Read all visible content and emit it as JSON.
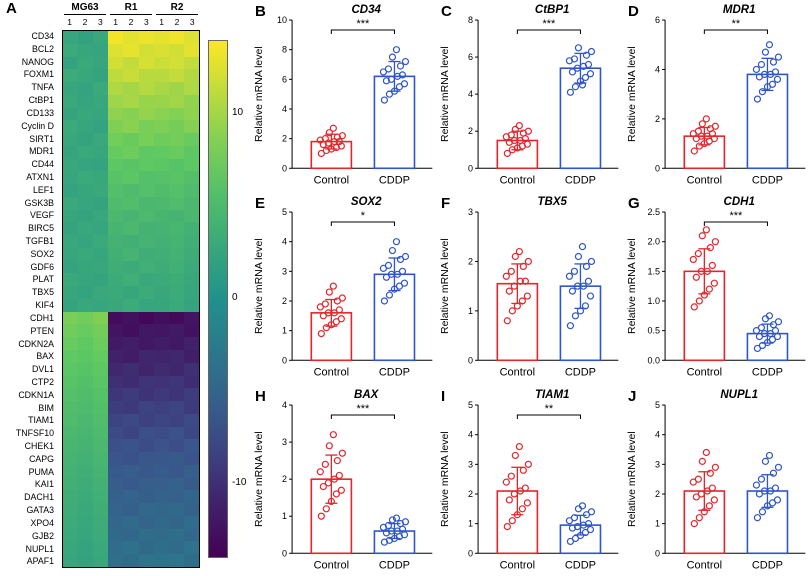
{
  "chart_data": [
    {
      "type": "heatmap",
      "panel": "A",
      "col_groups": [
        "MG63",
        "R1",
        "R2"
      ],
      "col_replicates": [
        "1",
        "2",
        "3"
      ],
      "rows": [
        "CD34",
        "BCL2",
        "NANOG",
        "FOXM1",
        "TNFA",
        "CtBP1",
        "CD133",
        "Cyclin D",
        "SIRT1",
        "MDR1",
        "CD44",
        "ATXN1",
        "LEF1",
        "GSK3B",
        "VEGF",
        "BIRC5",
        "TGFB1",
        "SOX2",
        "GDF6",
        "PLAT",
        "TBX5",
        "KIF4",
        "CDH1",
        "PTEN",
        "CDKN2A",
        "BAX",
        "DVL1",
        "CTP2",
        "CDKN1A",
        "BIM",
        "TIAM1",
        "TNFSF10",
        "CHEK1",
        "CAPG",
        "PUMA",
        "KAI1",
        "DACH1",
        "GATA3",
        "XPO4",
        "GJB2",
        "NUPL1",
        "APAF1"
      ],
      "values": [
        [
          2.5,
          2.0,
          2.8,
          13.5,
          12.8,
          13.2,
          12.9,
          13.4,
          12.6
        ],
        [
          3.0,
          2.6,
          2.4,
          12.6,
          13.0,
          12.2,
          12.4,
          12.0,
          12.8
        ],
        [
          2.2,
          2.9,
          2.5,
          12.0,
          11.5,
          12.3,
          11.8,
          12.1,
          11.4
        ],
        [
          3.1,
          2.7,
          2.3,
          11.2,
          11.7,
          10.9,
          11.0,
          11.5,
          10.7
        ],
        [
          2.6,
          2.2,
          3.0,
          10.6,
          10.1,
          10.8,
          10.3,
          9.9,
          10.5
        ],
        [
          2.9,
          2.4,
          2.7,
          9.8,
          10.2,
          9.5,
          9.6,
          10.0,
          9.3
        ],
        [
          2.3,
          2.8,
          2.5,
          9.2,
          8.8,
          9.4,
          9.0,
          8.6,
          9.1
        ],
        [
          3.0,
          2.5,
          2.2,
          8.5,
          8.9,
          8.2,
          8.4,
          8.0,
          8.7
        ],
        [
          2.7,
          2.3,
          2.9,
          7.9,
          7.5,
          8.1,
          7.7,
          8.0,
          7.4
        ],
        [
          2.4,
          2.9,
          2.6,
          7.3,
          7.7,
          7.0,
          7.1,
          7.5,
          6.8
        ],
        [
          2.8,
          2.4,
          2.2,
          6.8,
          6.4,
          7.0,
          6.6,
          6.2,
          6.9
        ],
        [
          2.5,
          3.0,
          2.7,
          6.2,
          6.6,
          5.9,
          6.0,
          6.4,
          5.8
        ],
        [
          2.2,
          2.6,
          2.9,
          5.7,
          5.3,
          5.9,
          5.5,
          5.9,
          5.2
        ],
        [
          2.9,
          2.5,
          2.3,
          5.2,
          5.6,
          4.9,
          5.0,
          5.4,
          4.8
        ],
        [
          2.6,
          2.2,
          2.8,
          4.8,
          4.4,
          5.0,
          4.6,
          4.2,
          4.9
        ],
        [
          2.3,
          2.8,
          2.5,
          4.4,
          4.8,
          4.1,
          4.2,
          4.6,
          4.0
        ],
        [
          2.8,
          2.4,
          3.0,
          4.1,
          3.7,
          4.3,
          3.9,
          4.3,
          3.6
        ],
        [
          2.5,
          2.9,
          2.6,
          3.8,
          4.2,
          3.5,
          3.6,
          4.0,
          3.4
        ],
        [
          2.2,
          2.6,
          2.8,
          3.5,
          3.1,
          3.7,
          3.3,
          3.7,
          3.0
        ],
        [
          2.9,
          2.5,
          2.3,
          3.2,
          3.6,
          2.9,
          3.0,
          3.4,
          2.8
        ],
        [
          2.6,
          2.2,
          2.9,
          3.0,
          2.6,
          3.2,
          2.8,
          3.2,
          2.5
        ],
        [
          2.3,
          2.8,
          2.5,
          2.8,
          3.2,
          2.5,
          2.6,
          3.0,
          2.4
        ],
        [
          8.2,
          7.8,
          8.5,
          -13.0,
          -12.5,
          -13.4,
          -12.8,
          -13.2,
          -12.4
        ],
        [
          7.8,
          7.4,
          8.0,
          -12.4,
          -12.8,
          -12.0,
          -12.2,
          -11.8,
          -12.6
        ],
        [
          7.4,
          7.0,
          7.6,
          -11.8,
          -11.4,
          -12.1,
          -11.6,
          -12.0,
          -11.2
        ],
        [
          7.0,
          6.6,
          7.2,
          -11.2,
          -11.6,
          -10.8,
          -11.0,
          -10.6,
          -11.4
        ],
        [
          6.6,
          6.2,
          6.9,
          -10.6,
          -10.2,
          -10.9,
          -10.4,
          -10.8,
          -10.0
        ],
        [
          6.2,
          5.8,
          6.5,
          -10.0,
          -10.4,
          -9.6,
          -9.8,
          -9.4,
          -10.2
        ],
        [
          5.9,
          5.5,
          6.1,
          -9.4,
          -9.0,
          -9.7,
          -9.2,
          -9.6,
          -8.8
        ],
        [
          5.5,
          5.1,
          5.8,
          -8.8,
          -9.2,
          -8.4,
          -8.6,
          -8.2,
          -9.0
        ],
        [
          5.2,
          4.8,
          5.4,
          -8.2,
          -7.8,
          -8.5,
          -8.0,
          -8.4,
          -7.6
        ],
        [
          4.9,
          4.5,
          5.1,
          -7.7,
          -8.1,
          -7.3,
          -7.5,
          -7.1,
          -7.9
        ],
        [
          4.6,
          4.2,
          4.8,
          -7.2,
          -6.8,
          -7.5,
          -7.0,
          -7.4,
          -6.6
        ],
        [
          4.3,
          3.9,
          4.5,
          -6.7,
          -7.1,
          -6.3,
          -6.5,
          -6.1,
          -6.9
        ],
        [
          4.0,
          3.6,
          4.2,
          -6.2,
          -5.8,
          -6.5,
          -6.0,
          -6.4,
          -5.6
        ],
        [
          3.8,
          3.4,
          4.0,
          -5.8,
          -6.2,
          -5.4,
          -5.6,
          -5.2,
          -6.0
        ],
        [
          3.5,
          3.1,
          3.7,
          -5.4,
          -5.0,
          -5.7,
          -5.2,
          -5.6,
          -4.8
        ],
        [
          3.3,
          2.9,
          3.5,
          -5.0,
          -5.4,
          -4.6,
          -4.8,
          -4.4,
          -5.2
        ],
        [
          3.1,
          2.7,
          3.3,
          -4.7,
          -4.3,
          -5.0,
          -4.5,
          -4.9,
          -4.1
        ],
        [
          2.9,
          2.5,
          3.1,
          -4.4,
          -4.8,
          -4.0,
          -4.2,
          -3.8,
          -4.6
        ],
        [
          2.7,
          2.3,
          2.9,
          -4.1,
          -3.7,
          -4.4,
          -3.9,
          -4.3,
          -3.5
        ],
        [
          2.5,
          2.1,
          2.7,
          -3.8,
          -4.2,
          -3.4,
          -3.6,
          -3.2,
          -4.0
        ]
      ],
      "colorbar": {
        "vmin": -14,
        "vmax": 14,
        "ticks": [
          "10",
          "0",
          "-10"
        ],
        "tick_values": [
          10,
          0,
          -10
        ]
      }
    },
    {
      "type": "scatter",
      "panel": "B",
      "title": "CD34",
      "ylabel": "Relative mRNA level",
      "ylim": [
        0,
        10
      ],
      "yticks": [
        0,
        2,
        4,
        6,
        8,
        10
      ],
      "tick_decimals": 0,
      "significance": "***",
      "groups": [
        {
          "label": "Control",
          "color": "#e4262c",
          "mean": 1.8,
          "sd": 0.5,
          "points": [
            1.0,
            1.2,
            1.3,
            1.4,
            1.5,
            1.6,
            1.7,
            1.8,
            1.8,
            1.9,
            2.0,
            2.1,
            2.2,
            2.4,
            2.7
          ]
        },
        {
          "label": "CDDP",
          "color": "#2f56c7",
          "mean": 6.2,
          "sd": 1.0,
          "points": [
            4.6,
            5.0,
            5.2,
            5.5,
            5.7,
            5.9,
            6.0,
            6.2,
            6.3,
            6.5,
            6.7,
            6.9,
            7.2,
            7.5,
            8.0
          ]
        }
      ]
    },
    {
      "type": "scatter",
      "panel": "C",
      "title": "CtBP1",
      "ylabel": "Relative mRNA level",
      "ylim": [
        0,
        8
      ],
      "yticks": [
        0,
        2,
        4,
        6,
        8
      ],
      "tick_decimals": 0,
      "significance": "***",
      "groups": [
        {
          "label": "Control",
          "color": "#e4262c",
          "mean": 1.5,
          "sd": 0.5,
          "points": [
            0.8,
            1.0,
            1.1,
            1.2,
            1.3,
            1.4,
            1.5,
            1.5,
            1.6,
            1.7,
            1.8,
            1.9,
            2.0,
            2.1,
            2.3
          ]
        },
        {
          "label": "CDDP",
          "color": "#2f56c7",
          "mean": 5.4,
          "sd": 0.8,
          "points": [
            4.1,
            4.4,
            4.7,
            4.9,
            5.1,
            5.2,
            5.4,
            5.5,
            5.6,
            5.8,
            5.9,
            6.1,
            6.3,
            6.5,
            4.5
          ]
        }
      ]
    },
    {
      "type": "scatter",
      "panel": "D",
      "title": "MDR1",
      "ylabel": "Relative mRNA level",
      "ylim": [
        0,
        6
      ],
      "yticks": [
        0,
        2,
        4,
        6
      ],
      "tick_decimals": 0,
      "significance": "**",
      "groups": [
        {
          "label": "Control",
          "color": "#e4262c",
          "mean": 1.3,
          "sd": 0.35,
          "points": [
            0.7,
            0.9,
            1.0,
            1.1,
            1.2,
            1.2,
            1.3,
            1.3,
            1.4,
            1.4,
            1.5,
            1.6,
            1.7,
            1.8,
            2.0
          ]
        },
        {
          "label": "CDDP",
          "color": "#2f56c7",
          "mean": 3.8,
          "sd": 0.65,
          "points": [
            2.8,
            3.1,
            3.3,
            3.4,
            3.6,
            3.7,
            3.8,
            3.8,
            3.9,
            4.0,
            4.2,
            4.3,
            4.5,
            4.7,
            5.0
          ]
        }
      ]
    },
    {
      "type": "scatter",
      "panel": "E",
      "title": "SOX2",
      "ylabel": "Relative mRNA level",
      "ylim": [
        0,
        5
      ],
      "yticks": [
        0,
        1,
        2,
        3,
        4,
        5
      ],
      "tick_decimals": 0,
      "significance": "*",
      "groups": [
        {
          "label": "Control",
          "color": "#e4262c",
          "mean": 1.6,
          "sd": 0.45,
          "points": [
            0.9,
            1.1,
            1.2,
            1.3,
            1.4,
            1.5,
            1.6,
            1.6,
            1.7,
            1.8,
            1.9,
            2.0,
            2.1,
            2.3,
            2.5
          ]
        },
        {
          "label": "CDDP",
          "color": "#2f56c7",
          "mean": 2.9,
          "sd": 0.55,
          "points": [
            2.0,
            2.2,
            2.4,
            2.5,
            2.6,
            2.8,
            2.9,
            2.9,
            3.0,
            3.1,
            3.2,
            3.4,
            3.5,
            3.7,
            4.0
          ]
        }
      ]
    },
    {
      "type": "scatter",
      "panel": "F",
      "title": "TBX5",
      "ylabel": "Relative mRNA level",
      "ylim": [
        0,
        3
      ],
      "yticks": [
        0,
        1,
        2,
        3
      ],
      "tick_decimals": 0,
      "significance": "",
      "groups": [
        {
          "label": "Control",
          "color": "#e4262c",
          "mean": 1.55,
          "sd": 0.4,
          "points": [
            0.8,
            1.0,
            1.1,
            1.2,
            1.3,
            1.4,
            1.5,
            1.6,
            1.6,
            1.7,
            1.8,
            1.9,
            2.0,
            2.1,
            2.2
          ]
        },
        {
          "label": "CDDP",
          "color": "#2f56c7",
          "mean": 1.5,
          "sd": 0.45,
          "points": [
            0.7,
            0.9,
            1.0,
            1.1,
            1.3,
            1.4,
            1.5,
            1.5,
            1.6,
            1.7,
            1.8,
            1.9,
            2.0,
            2.1,
            2.3
          ]
        }
      ]
    },
    {
      "type": "scatter",
      "panel": "G",
      "title": "CDH1",
      "ylabel": "Relative mRNA level",
      "ylim": [
        0,
        2.5
      ],
      "yticks": [
        0,
        0.5,
        1,
        1.5,
        2,
        2.5
      ],
      "tick_decimals": 1,
      "significance": "***",
      "groups": [
        {
          "label": "Control",
          "color": "#e4262c",
          "mean": 1.5,
          "sd": 0.38,
          "points": [
            0.9,
            1.0,
            1.1,
            1.2,
            1.3,
            1.4,
            1.5,
            1.5,
            1.6,
            1.7,
            1.8,
            1.9,
            2.0,
            2.1,
            2.2
          ]
        },
        {
          "label": "CDDP",
          "color": "#2f56c7",
          "mean": 0.45,
          "sd": 0.16,
          "points": [
            0.2,
            0.25,
            0.3,
            0.35,
            0.4,
            0.4,
            0.45,
            0.45,
            0.5,
            0.5,
            0.55,
            0.6,
            0.65,
            0.7,
            0.75
          ]
        }
      ]
    },
    {
      "type": "scatter",
      "panel": "H",
      "title": "BAX",
      "ylabel": "Relative mRNA level",
      "ylim": [
        0,
        4
      ],
      "yticks": [
        0,
        1,
        2,
        3,
        4
      ],
      "tick_decimals": 0,
      "significance": "***",
      "groups": [
        {
          "label": "Control",
          "color": "#e4262c",
          "mean": 2.0,
          "sd": 0.65,
          "points": [
            1.0,
            1.2,
            1.4,
            1.6,
            1.7,
            1.8,
            1.9,
            2.0,
            2.1,
            2.2,
            2.4,
            2.5,
            2.7,
            2.9,
            3.2
          ]
        },
        {
          "label": "CDDP",
          "color": "#2f56c7",
          "mean": 0.6,
          "sd": 0.2,
          "points": [
            0.3,
            0.35,
            0.4,
            0.45,
            0.5,
            0.55,
            0.6,
            0.6,
            0.65,
            0.7,
            0.75,
            0.8,
            0.85,
            0.9,
            0.95
          ]
        }
      ]
    },
    {
      "type": "scatter",
      "panel": "I",
      "title": "TIAM1",
      "ylabel": "Relative mRNA level",
      "ylim": [
        0,
        5
      ],
      "yticks": [
        0,
        1,
        2,
        3,
        4,
        5
      ],
      "tick_decimals": 0,
      "significance": "**",
      "groups": [
        {
          "label": "Control",
          "color": "#e4262c",
          "mean": 2.1,
          "sd": 0.8,
          "points": [
            0.9,
            1.1,
            1.3,
            1.5,
            1.7,
            1.8,
            2.0,
            2.1,
            2.2,
            2.4,
            2.6,
            2.8,
            3.0,
            3.3,
            3.6
          ]
        },
        {
          "label": "CDDP",
          "color": "#2f56c7",
          "mean": 0.95,
          "sd": 0.33,
          "points": [
            0.4,
            0.5,
            0.6,
            0.7,
            0.8,
            0.85,
            0.9,
            0.95,
            1.0,
            1.1,
            1.2,
            1.3,
            1.4,
            1.5,
            1.6
          ]
        }
      ]
    },
    {
      "type": "scatter",
      "panel": "J",
      "title": "NUPL1",
      "ylabel": "Relative mRNA level",
      "ylim": [
        0,
        5
      ],
      "yticks": [
        0,
        1,
        2,
        3,
        4,
        5
      ],
      "tick_decimals": 0,
      "significance": "",
      "groups": [
        {
          "label": "Control",
          "color": "#e4262c",
          "mean": 2.1,
          "sd": 0.65,
          "points": [
            1.0,
            1.2,
            1.4,
            1.6,
            1.8,
            1.9,
            2.0,
            2.1,
            2.2,
            2.4,
            2.5,
            2.7,
            2.9,
            3.1,
            3.4
          ]
        },
        {
          "label": "CDDP",
          "color": "#2f56c7",
          "mean": 2.1,
          "sd": 0.55,
          "points": [
            1.2,
            1.4,
            1.6,
            1.7,
            1.8,
            2.0,
            2.1,
            2.1,
            2.2,
            2.3,
            2.5,
            2.7,
            2.9,
            3.1,
            3.3
          ]
        }
      ]
    }
  ]
}
